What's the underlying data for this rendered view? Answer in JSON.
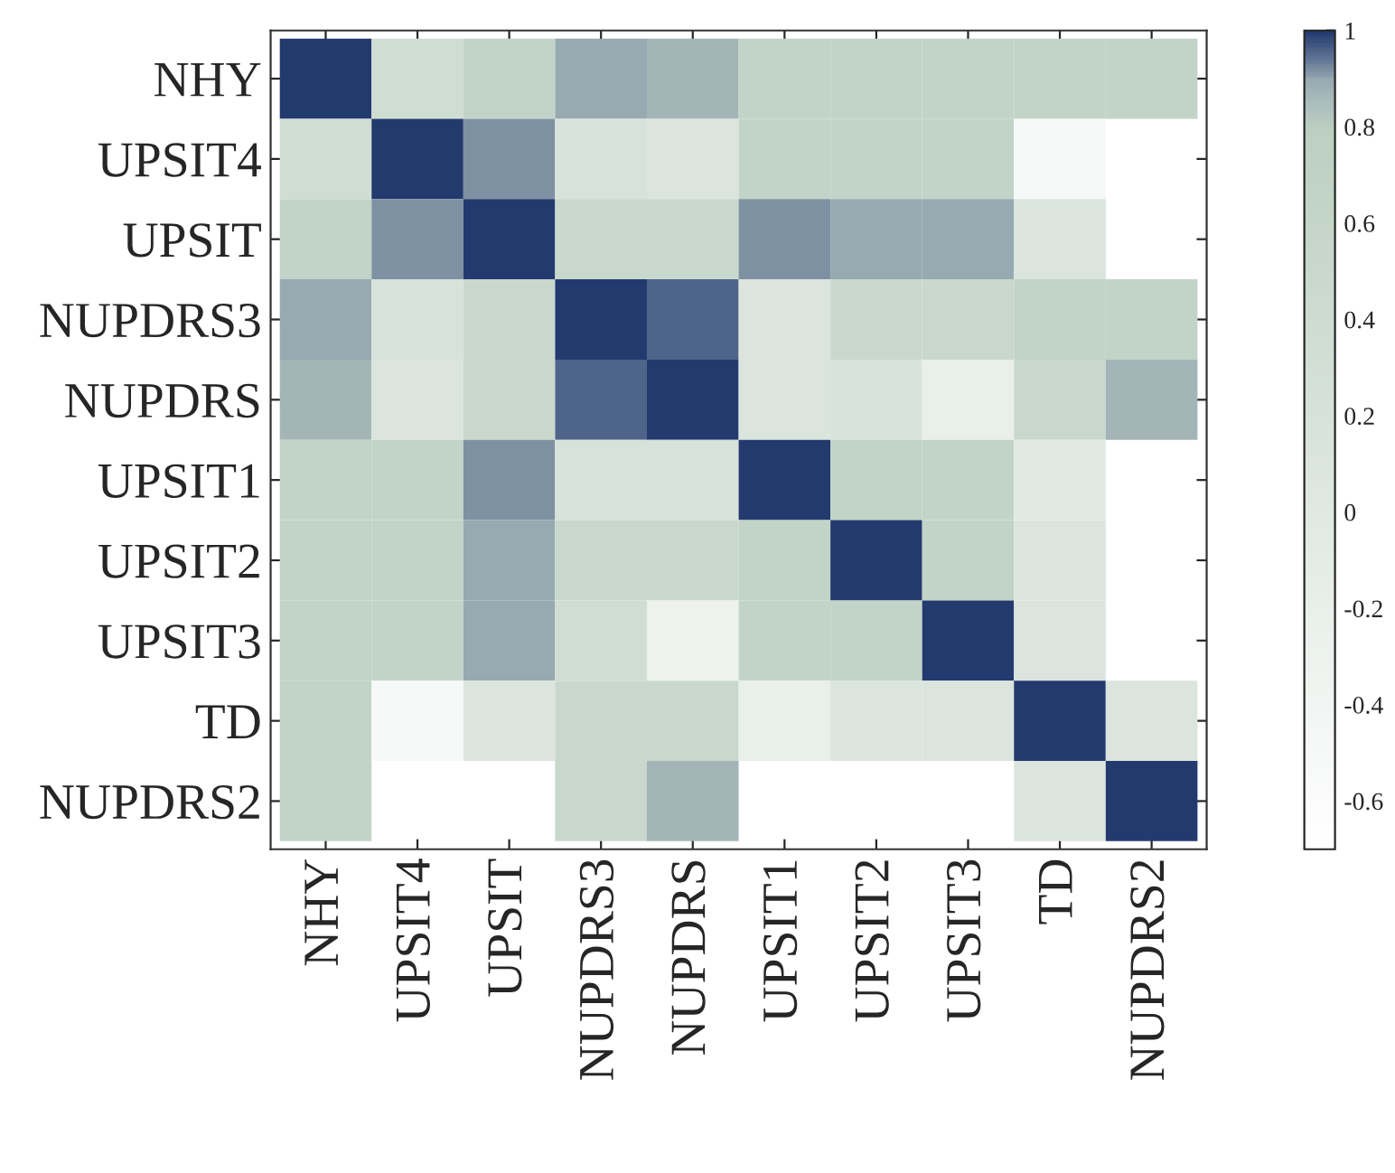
{
  "chart_data": {
    "type": "heatmap",
    "categories": [
      "NHY",
      "UPSIT4",
      "UPSIT",
      "NUPDRS3",
      "NUPDRS",
      "UPSIT1",
      "UPSIT2",
      "UPSIT3",
      "TD",
      "NUPDRS2"
    ],
    "y_categories": [
      "NHY",
      "UPSIT4",
      "UPSIT",
      "NUPDRS3",
      "NUPDRS",
      "UPSIT1",
      "UPSIT2",
      "UPSIT3",
      "TD",
      "NUPDRS2"
    ],
    "cells": [
      [
        1,
        0.35,
        0.65,
        0.9,
        0.87,
        0.65,
        0.65,
        0.65,
        0.65,
        0.65
      ],
      [
        0.35,
        1,
        0.92,
        0.2,
        0.1,
        0.65,
        0.65,
        0.65,
        -0.5,
        null
      ],
      [
        0.65,
        0.92,
        1,
        0.5,
        0.5,
        0.92,
        0.9,
        0.9,
        0.1,
        null
      ],
      [
        0.9,
        0.2,
        0.5,
        1,
        0.96,
        0.1,
        0.5,
        0.5,
        0.65,
        0.65
      ],
      [
        0.87,
        0.1,
        0.5,
        0.96,
        1,
        0.1,
        0.2,
        -0.2,
        0.5,
        0.87
      ],
      [
        0.65,
        0.65,
        0.92,
        0.2,
        0.2,
        1,
        0.65,
        0.65,
        0,
        null
      ],
      [
        0.65,
        0.65,
        0.9,
        0.5,
        0.5,
        0.65,
        1,
        0.65,
        0.1,
        null
      ],
      [
        0.65,
        0.65,
        0.9,
        0.35,
        -0.3,
        0.65,
        0.65,
        1,
        0.1,
        null
      ],
      [
        0.65,
        -0.5,
        0.1,
        0.5,
        0.5,
        -0.2,
        0.1,
        0.1,
        1,
        0.1
      ],
      [
        0.65,
        null,
        null,
        0.5,
        0.87,
        null,
        null,
        null,
        0.1,
        1
      ]
    ],
    "clim": [
      -0.7,
      1
    ],
    "cticks": [
      -0.6,
      -0.4,
      -0.2,
      0,
      0.2,
      0.4,
      0.6,
      0.8,
      1
    ]
  }
}
